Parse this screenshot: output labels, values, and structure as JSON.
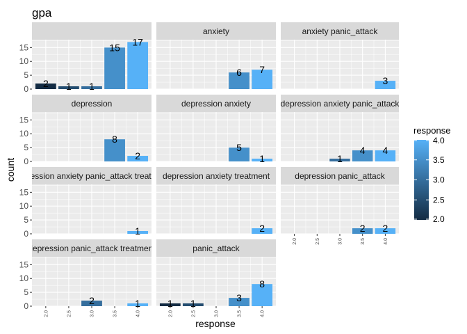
{
  "chart_data": {
    "type": "bar",
    "title": "gpa",
    "xlabel": "response",
    "ylabel": "count",
    "x_ticks": [
      "2.0",
      "2.5",
      "3.0",
      "3.5",
      "4.0"
    ],
    "x_tick_values": [
      2.0,
      2.5,
      3.0,
      3.5,
      4.0
    ],
    "y_ticks": [
      "0",
      "5",
      "10",
      "15"
    ],
    "y_tick_values": [
      0,
      5,
      10,
      15
    ],
    "ylim": [
      0,
      17.85
    ],
    "xlim": [
      1.7,
      4.3
    ],
    "facets": [
      {
        "label": "",
        "bars": [
          {
            "x": 2.0,
            "count": 2
          },
          {
            "x": 2.5,
            "count": 1
          },
          {
            "x": 3.0,
            "count": 1
          },
          {
            "x": 3.5,
            "count": 15
          },
          {
            "x": 4.0,
            "count": 17
          }
        ]
      },
      {
        "label": "anxiety",
        "bars": [
          {
            "x": 3.5,
            "count": 6
          },
          {
            "x": 4.0,
            "count": 7
          }
        ]
      },
      {
        "label": "anxiety panic_attack",
        "bars": [
          {
            "x": 4.0,
            "count": 3
          }
        ]
      },
      {
        "label": "depression",
        "bars": [
          {
            "x": 3.5,
            "count": 8
          },
          {
            "x": 4.0,
            "count": 2
          }
        ]
      },
      {
        "label": "depression anxiety",
        "bars": [
          {
            "x": 3.5,
            "count": 5
          },
          {
            "x": 4.0,
            "count": 1
          }
        ]
      },
      {
        "label": "depression anxiety panic_attack",
        "bars": [
          {
            "x": 3.0,
            "count": 1
          },
          {
            "x": 3.5,
            "count": 4
          },
          {
            "x": 4.0,
            "count": 4
          }
        ]
      },
      {
        "label": "depression anxiety panic_attack treatment",
        "bars": [
          {
            "x": 4.0,
            "count": 1
          }
        ]
      },
      {
        "label": "depression anxiety treatment",
        "bars": [
          {
            "x": 4.0,
            "count": 2
          }
        ]
      },
      {
        "label": "depression panic_attack",
        "bars": [
          {
            "x": 3.5,
            "count": 2
          },
          {
            "x": 4.0,
            "count": 2
          }
        ]
      },
      {
        "label": "depression panic_attack treatment",
        "bars": [
          {
            "x": 3.0,
            "count": 2
          },
          {
            "x": 4.0,
            "count": 1
          }
        ]
      },
      {
        "label": "panic_attack",
        "bars": [
          {
            "x": 2.0,
            "count": 1
          },
          {
            "x": 2.5,
            "count": 1
          },
          {
            "x": 3.5,
            "count": 3
          },
          {
            "x": 4.0,
            "count": 8
          }
        ]
      }
    ],
    "legend": {
      "title": "response",
      "position": "right",
      "ticks": [
        "2.0",
        "2.5",
        "3.0",
        "3.5",
        "4.0"
      ],
      "tick_values": [
        2.0,
        2.5,
        3.0,
        3.5,
        4.0
      ],
      "range": [
        2.0,
        4.0
      ],
      "low_color": "#132B43",
      "high_color": "#56B1F7"
    },
    "grid": true,
    "panel_background": "#EBEBEB",
    "strip_background": "#D9D9D9"
  }
}
